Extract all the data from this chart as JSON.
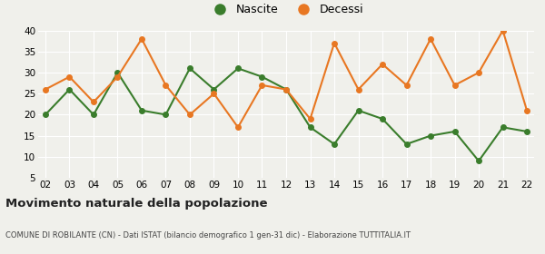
{
  "years": [
    "02",
    "03",
    "04",
    "05",
    "06",
    "07",
    "08",
    "09",
    "10",
    "11",
    "12",
    "13",
    "14",
    "15",
    "16",
    "17",
    "18",
    "19",
    "20",
    "21",
    "22"
  ],
  "nascite": [
    20,
    26,
    20,
    30,
    21,
    20,
    31,
    26,
    31,
    29,
    26,
    17,
    13,
    21,
    19,
    13,
    15,
    16,
    9,
    17,
    16
  ],
  "decessi": [
    26,
    29,
    23,
    29,
    38,
    27,
    20,
    25,
    17,
    27,
    26,
    19,
    37,
    26,
    32,
    27,
    38,
    27,
    30,
    40,
    21
  ],
  "nascite_color": "#3a7d2c",
  "decessi_color": "#e87722",
  "title": "Movimento naturale della popolazione",
  "subtitle": "COMUNE DI ROBILANTE (CN) - Dati ISTAT (bilancio demografico 1 gen-31 dic) - Elaborazione TUTTITALIA.IT",
  "ylim": [
    5,
    40
  ],
  "yticks": [
    5,
    10,
    15,
    20,
    25,
    30,
    35,
    40
  ],
  "bg_color": "#f0f0eb",
  "grid_color": "#ffffff",
  "legend_nascite": "Nascite",
  "legend_decessi": "Decessi"
}
